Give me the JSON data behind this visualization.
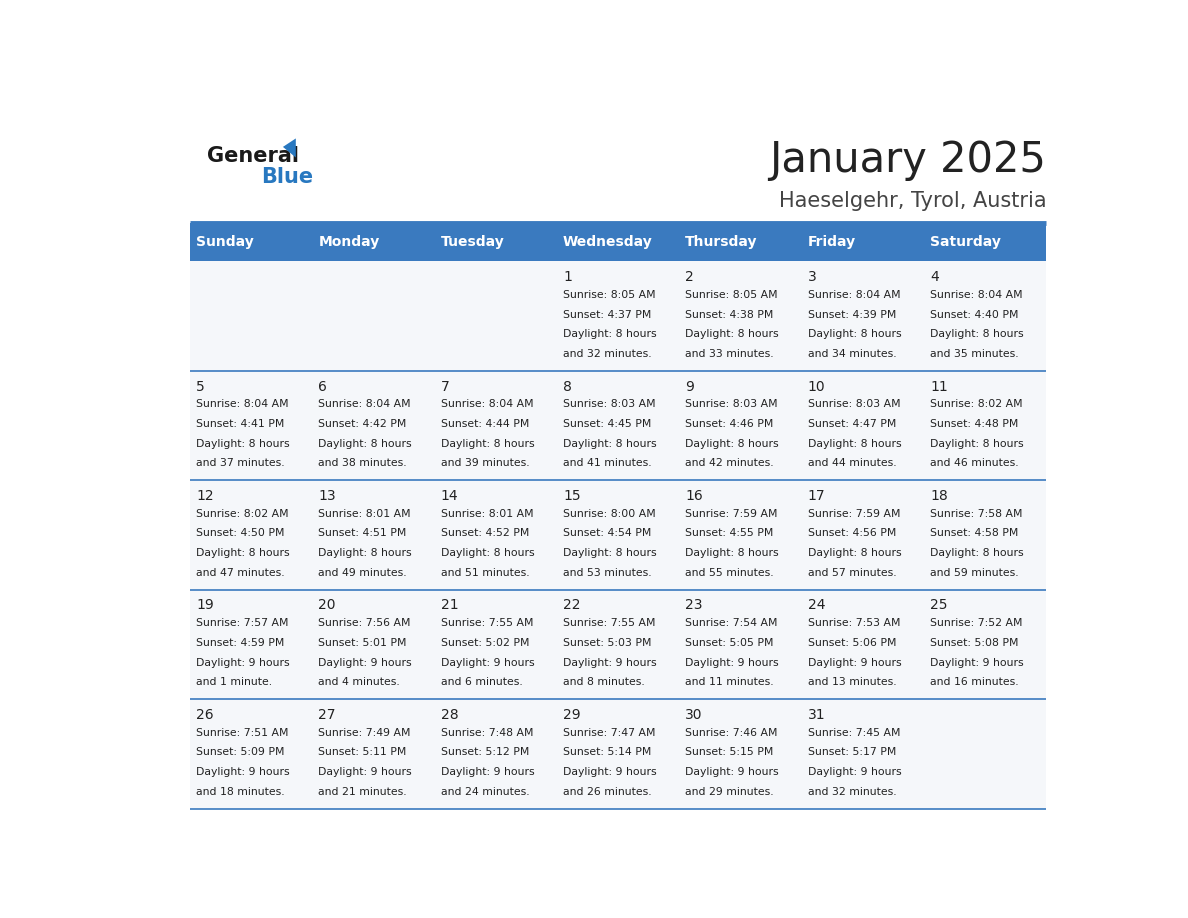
{
  "title": "January 2025",
  "subtitle": "Haeselgehr, Tyrol, Austria",
  "days_of_week": [
    "Sunday",
    "Monday",
    "Tuesday",
    "Wednesday",
    "Thursday",
    "Friday",
    "Saturday"
  ],
  "header_bg": "#3a7abf",
  "header_text": "#ffffff",
  "cell_bg": "#f5f7fa",
  "separator_color": "#3a7abf",
  "text_color": "#222222",
  "title_color": "#222222",
  "subtitle_color": "#444444",
  "logo_general_color": "#1a1a1a",
  "logo_blue_color": "#2878c0",
  "calendar_data": [
    [
      null,
      null,
      null,
      {
        "day": 1,
        "sunrise": "8:05 AM",
        "sunset": "4:37 PM",
        "daylight": "8 hours and 32 minutes."
      },
      {
        "day": 2,
        "sunrise": "8:05 AM",
        "sunset": "4:38 PM",
        "daylight": "8 hours and 33 minutes."
      },
      {
        "day": 3,
        "sunrise": "8:04 AM",
        "sunset": "4:39 PM",
        "daylight": "8 hours and 34 minutes."
      },
      {
        "day": 4,
        "sunrise": "8:04 AM",
        "sunset": "4:40 PM",
        "daylight": "8 hours and 35 minutes."
      }
    ],
    [
      {
        "day": 5,
        "sunrise": "8:04 AM",
        "sunset": "4:41 PM",
        "daylight": "8 hours and 37 minutes."
      },
      {
        "day": 6,
        "sunrise": "8:04 AM",
        "sunset": "4:42 PM",
        "daylight": "8 hours and 38 minutes."
      },
      {
        "day": 7,
        "sunrise": "8:04 AM",
        "sunset": "4:44 PM",
        "daylight": "8 hours and 39 minutes."
      },
      {
        "day": 8,
        "sunrise": "8:03 AM",
        "sunset": "4:45 PM",
        "daylight": "8 hours and 41 minutes."
      },
      {
        "day": 9,
        "sunrise": "8:03 AM",
        "sunset": "4:46 PM",
        "daylight": "8 hours and 42 minutes."
      },
      {
        "day": 10,
        "sunrise": "8:03 AM",
        "sunset": "4:47 PM",
        "daylight": "8 hours and 44 minutes."
      },
      {
        "day": 11,
        "sunrise": "8:02 AM",
        "sunset": "4:48 PM",
        "daylight": "8 hours and 46 minutes."
      }
    ],
    [
      {
        "day": 12,
        "sunrise": "8:02 AM",
        "sunset": "4:50 PM",
        "daylight": "8 hours and 47 minutes."
      },
      {
        "day": 13,
        "sunrise": "8:01 AM",
        "sunset": "4:51 PM",
        "daylight": "8 hours and 49 minutes."
      },
      {
        "day": 14,
        "sunrise": "8:01 AM",
        "sunset": "4:52 PM",
        "daylight": "8 hours and 51 minutes."
      },
      {
        "day": 15,
        "sunrise": "8:00 AM",
        "sunset": "4:54 PM",
        "daylight": "8 hours and 53 minutes."
      },
      {
        "day": 16,
        "sunrise": "7:59 AM",
        "sunset": "4:55 PM",
        "daylight": "8 hours and 55 minutes."
      },
      {
        "day": 17,
        "sunrise": "7:59 AM",
        "sunset": "4:56 PM",
        "daylight": "8 hours and 57 minutes."
      },
      {
        "day": 18,
        "sunrise": "7:58 AM",
        "sunset": "4:58 PM",
        "daylight": "8 hours and 59 minutes."
      }
    ],
    [
      {
        "day": 19,
        "sunrise": "7:57 AM",
        "sunset": "4:59 PM",
        "daylight": "9 hours and 1 minute."
      },
      {
        "day": 20,
        "sunrise": "7:56 AM",
        "sunset": "5:01 PM",
        "daylight": "9 hours and 4 minutes."
      },
      {
        "day": 21,
        "sunrise": "7:55 AM",
        "sunset": "5:02 PM",
        "daylight": "9 hours and 6 minutes."
      },
      {
        "day": 22,
        "sunrise": "7:55 AM",
        "sunset": "5:03 PM",
        "daylight": "9 hours and 8 minutes."
      },
      {
        "day": 23,
        "sunrise": "7:54 AM",
        "sunset": "5:05 PM",
        "daylight": "9 hours and 11 minutes."
      },
      {
        "day": 24,
        "sunrise": "7:53 AM",
        "sunset": "5:06 PM",
        "daylight": "9 hours and 13 minutes."
      },
      {
        "day": 25,
        "sunrise": "7:52 AM",
        "sunset": "5:08 PM",
        "daylight": "9 hours and 16 minutes."
      }
    ],
    [
      {
        "day": 26,
        "sunrise": "7:51 AM",
        "sunset": "5:09 PM",
        "daylight": "9 hours and 18 minutes."
      },
      {
        "day": 27,
        "sunrise": "7:49 AM",
        "sunset": "5:11 PM",
        "daylight": "9 hours and 21 minutes."
      },
      {
        "day": 28,
        "sunrise": "7:48 AM",
        "sunset": "5:12 PM",
        "daylight": "9 hours and 24 minutes."
      },
      {
        "day": 29,
        "sunrise": "7:47 AM",
        "sunset": "5:14 PM",
        "daylight": "9 hours and 26 minutes."
      },
      {
        "day": 30,
        "sunrise": "7:46 AM",
        "sunset": "5:15 PM",
        "daylight": "9 hours and 29 minutes."
      },
      {
        "day": 31,
        "sunrise": "7:45 AM",
        "sunset": "5:17 PM",
        "daylight": "9 hours and 32 minutes."
      },
      null
    ]
  ]
}
